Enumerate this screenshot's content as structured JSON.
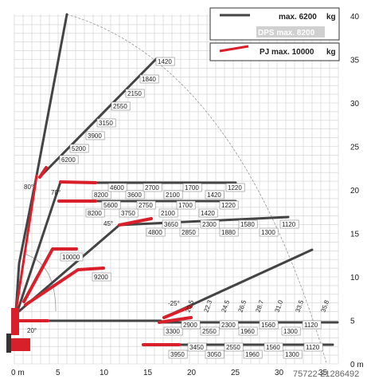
{
  "legend": [
    {
      "label": "max. 6200",
      "unit": "kg",
      "boom_color": "#444444"
    },
    {
      "label": "DPS max. 8200",
      "unit": "",
      "muted": true
    },
    {
      "label": "PJ max. 10000",
      "unit": "kg",
      "boom_color": "#d81f2a"
    }
  ],
  "axes": {
    "x_ticks": [
      "0 m",
      "5",
      "10",
      "15",
      "20",
      "25",
      "30",
      "35"
    ],
    "y_ticks": [
      "0 m",
      "5",
      "10",
      "15",
      "20",
      "25",
      "30",
      "35",
      "40"
    ]
  },
  "angles": [
    "80°",
    "70°",
    "45°",
    "20°",
    "-25°"
  ],
  "load_rows": [
    [
      "6200",
      "5200",
      "3900",
      "3150",
      "2550",
      "2150",
      "1840",
      "1420"
    ],
    [
      "8200",
      "4600",
      "3600",
      "2700",
      "2100",
      "1700",
      "1420",
      "1220"
    ],
    [
      "8200",
      "5600",
      "3750",
      "2750",
      "2100",
      "1700",
      "1420",
      "1220"
    ],
    [
      "4800",
      "3650",
      "2850",
      "2300",
      "1880",
      "1580",
      "1300",
      "1120"
    ],
    [
      "10000"
    ],
    [
      "9200"
    ],
    [
      "3300",
      "2900",
      "2550",
      "2300",
      "1960",
      "1560",
      "1300",
      "1120"
    ],
    [
      "3950",
      "3450",
      "3050",
      "2550",
      "1960",
      "1560",
      "1300",
      "1120"
    ]
  ],
  "reach_labels": [
    "20.5",
    "22.3",
    "24.5",
    "26.5",
    "28.7",
    "31.0",
    "33.5",
    "35.8"
  ],
  "watermark": "75722-21286492"
}
